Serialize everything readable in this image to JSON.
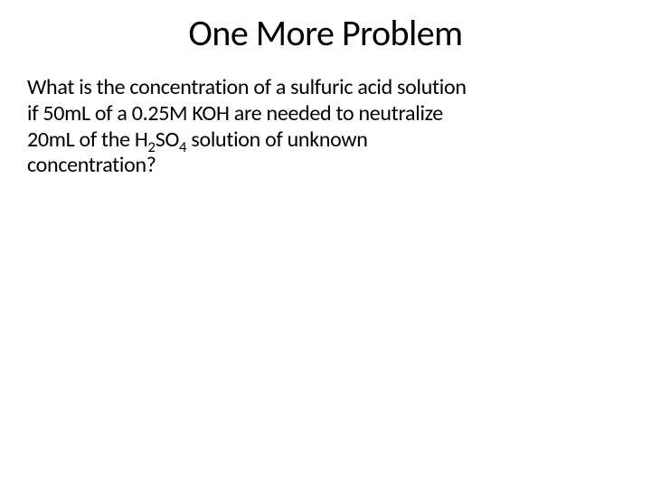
{
  "slide": {
    "title": "One More Problem",
    "body": {
      "line1": "What is the concentration of a sulfuric acid solution",
      "line2_part1": "if 50mL of a 0.25M KOH are needed to neutralize",
      "line3_part1": "20mL of the H",
      "line3_sub1": "2",
      "line3_part2": "SO",
      "line3_sub2": "4",
      "line3_part3": " solution of unknown",
      "line4": "concentration?"
    },
    "colors": {
      "background": "#ffffff",
      "text": "#000000"
    },
    "fonts": {
      "title_size": 40,
      "body_size": 24,
      "family": "Calibri"
    }
  }
}
